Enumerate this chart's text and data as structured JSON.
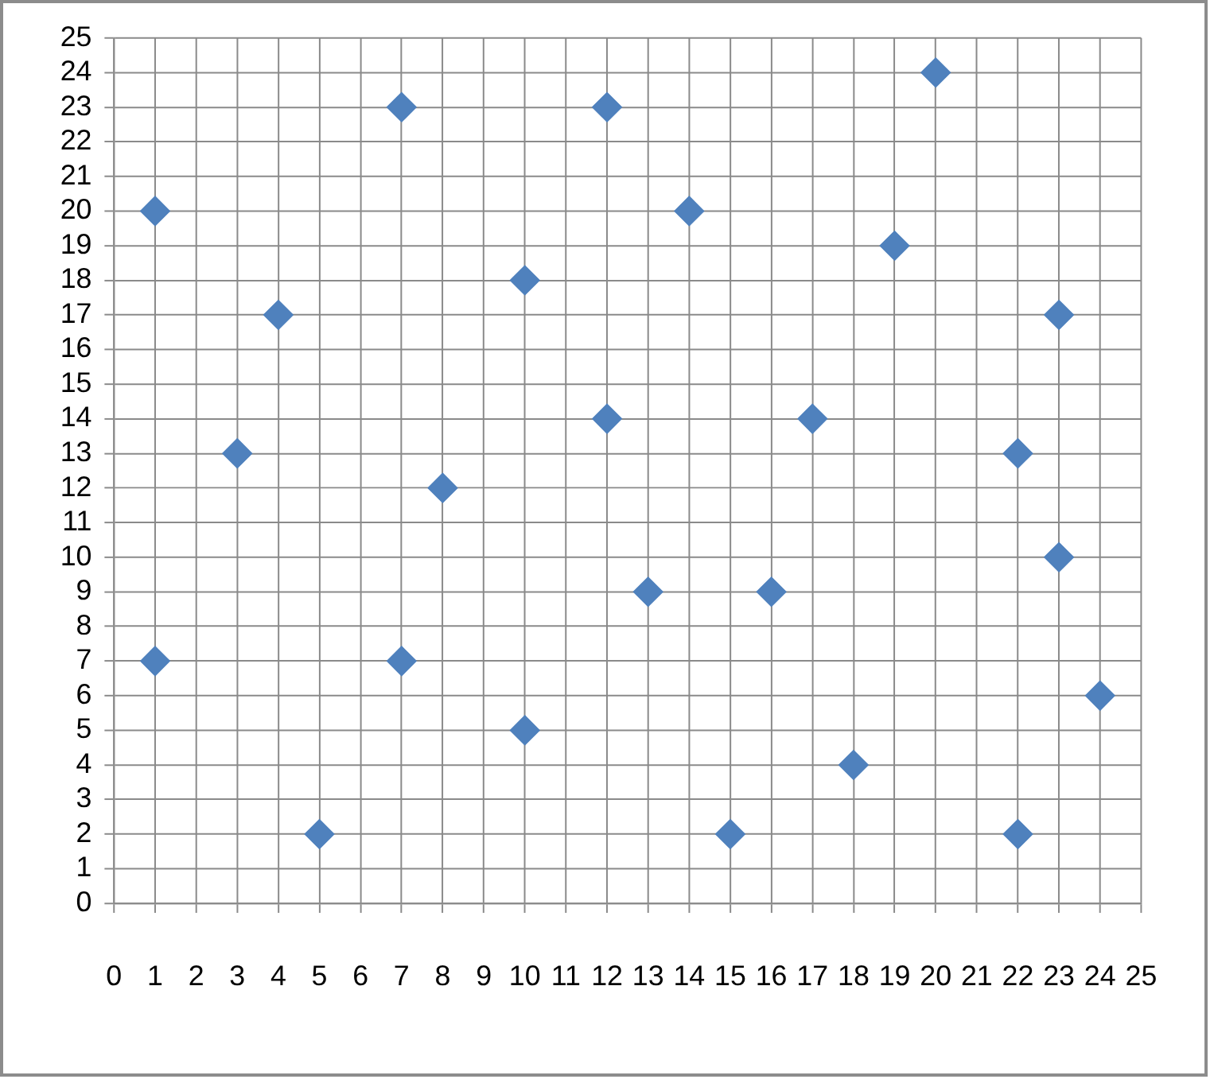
{
  "chart_data": {
    "type": "scatter",
    "marker": "diamond",
    "grid": true,
    "legend": false,
    "xlim": [
      0,
      25
    ],
    "xticks": [
      0,
      1,
      2,
      3,
      4,
      5,
      6,
      7,
      8,
      9,
      10,
      11,
      12,
      13,
      14,
      15,
      16,
      17,
      18,
      19,
      20,
      21,
      22,
      23,
      24,
      25
    ],
    "ylim": [
      0,
      25
    ],
    "yticks": [
      0,
      1,
      2,
      3,
      4,
      5,
      6,
      7,
      8,
      9,
      10,
      11,
      12,
      13,
      14,
      15,
      16,
      17,
      18,
      19,
      20,
      21,
      22,
      23,
      24,
      25
    ],
    "series": [
      {
        "color": "#4f81bd",
        "x": [
          1,
          1,
          3,
          4,
          5,
          7,
          7,
          8,
          10,
          10,
          12,
          12,
          13,
          14,
          15,
          16,
          17,
          18,
          19,
          20,
          22,
          22,
          23,
          23,
          24
        ],
        "values": [
          20,
          7,
          13,
          17,
          2,
          23,
          7,
          12,
          18,
          5,
          23,
          14,
          9,
          20,
          2,
          9,
          14,
          4,
          19,
          24,
          13,
          2,
          17,
          10,
          6
        ]
      }
    ]
  }
}
